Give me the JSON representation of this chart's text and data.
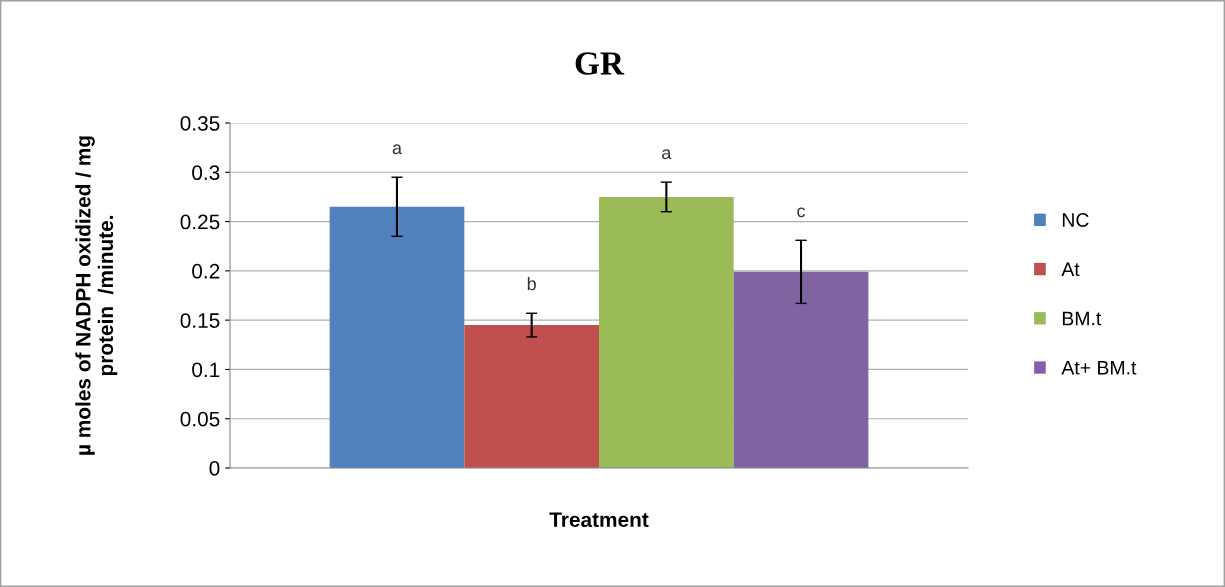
{
  "chart_data": {
    "type": "bar",
    "title": "GR",
    "categories": [
      null
    ],
    "series": [
      {
        "name": "NC",
        "color": "#4f81bd",
        "values": [
          0.265
        ],
        "errors": [
          0.03
        ]
      },
      {
        "name": "At",
        "color": "#c0504d",
        "values": [
          0.145
        ],
        "errors": [
          0.012
        ]
      },
      {
        "name": "BM.t",
        "color": "#9bbb59",
        "values": [
          0.275
        ],
        "errors": [
          0.015
        ]
      },
      {
        "name": "At+ BM.t",
        "color": "#8064a2",
        "values": [
          0.199
        ],
        "errors": [
          0.032
        ]
      }
    ],
    "annotations": [
      "a",
      "b",
      "a",
      "c"
    ],
    "xlabel": "Treatment",
    "ylabel": "µ moles of NADPH oxidized / mg\nprotein  /minute.",
    "ylim": [
      0,
      0.35
    ],
    "yticks": [
      0,
      0.05,
      0.1,
      0.15,
      0.2,
      0.25,
      0.3,
      0.35
    ],
    "grid": "y",
    "legend": "right"
  }
}
